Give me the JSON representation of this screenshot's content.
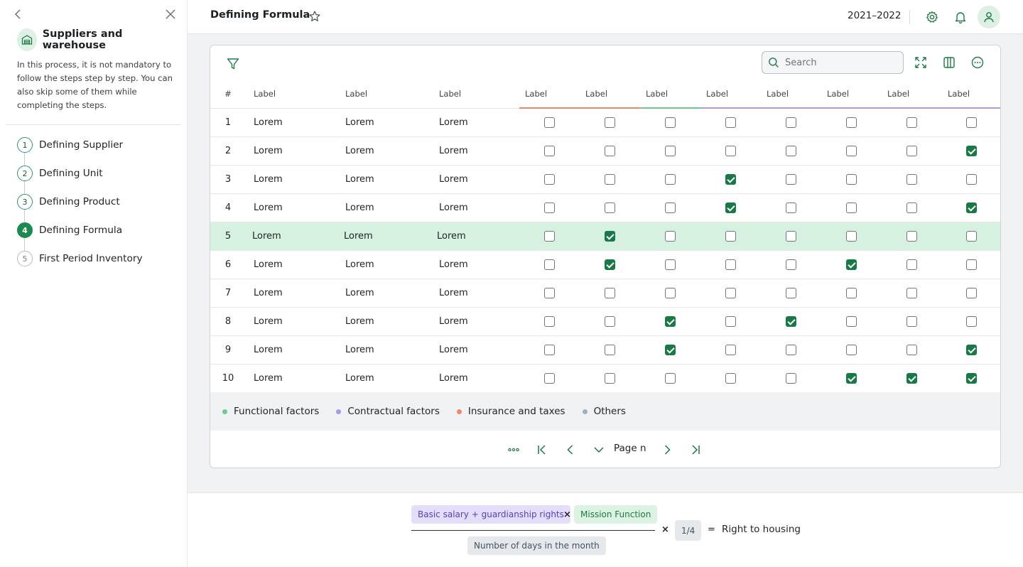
{
  "sidebar": {
    "title": "Suppliers and warehouse",
    "description": "In this process, it is not mandatory to follow the steps step by step. You can also skip some of them while completing the steps.",
    "steps": [
      {
        "num": "1",
        "label": "Defining Supplier",
        "state": "done"
      },
      {
        "num": "2",
        "label": "Defining Unit",
        "state": "done"
      },
      {
        "num": "3",
        "label": "Defining Product",
        "state": "done"
      },
      {
        "num": "4",
        "label": "Defining Formula",
        "state": "active"
      },
      {
        "num": "5",
        "label": "First Period Inventory",
        "state": "pending"
      }
    ]
  },
  "header": {
    "title": "Defining Formula",
    "year": "2021–2022"
  },
  "toolbar": {
    "search_placeholder": "Search"
  },
  "table": {
    "columns": [
      "#",
      "Label",
      "Label",
      "Label",
      "Label",
      "Label",
      "Label",
      "Label",
      "Label",
      "Label",
      "Label",
      "Label"
    ],
    "rows": [
      {
        "num": "1",
        "a": "Lorem",
        "b": "Lorem",
        "c": "Lorem",
        "checks": [
          0,
          0,
          0,
          0,
          0,
          0,
          0,
          0
        ]
      },
      {
        "num": "2",
        "a": "Lorem",
        "b": "Lorem",
        "c": "Lorem",
        "checks": [
          0,
          0,
          0,
          0,
          0,
          0,
          0,
          1
        ]
      },
      {
        "num": "3",
        "a": "Lorem",
        "b": "Lorem",
        "c": "Lorem",
        "checks": [
          0,
          0,
          0,
          1,
          0,
          0,
          0,
          0
        ]
      },
      {
        "num": "4",
        "a": "Lorem",
        "b": "Lorem",
        "c": "Lorem",
        "checks": [
          0,
          0,
          0,
          1,
          0,
          0,
          0,
          1
        ]
      },
      {
        "num": "5",
        "a": "Lorem",
        "b": "Lorem",
        "c": "Lorem",
        "checks": [
          0,
          1,
          0,
          0,
          0,
          0,
          0,
          0
        ],
        "highlighted": true
      },
      {
        "num": "6",
        "a": "Lorem",
        "b": "Lorem",
        "c": "Lorem",
        "checks": [
          0,
          1,
          0,
          0,
          0,
          1,
          0,
          0
        ]
      },
      {
        "num": "7",
        "a": "Lorem",
        "b": "Lorem",
        "c": "Lorem",
        "checks": [
          0,
          0,
          0,
          0,
          0,
          0,
          0,
          0
        ]
      },
      {
        "num": "8",
        "a": "Lorem",
        "b": "Lorem",
        "c": "Lorem",
        "checks": [
          0,
          0,
          1,
          0,
          1,
          0,
          0,
          0
        ]
      },
      {
        "num": "9",
        "a": "Lorem",
        "b": "Lorem",
        "c": "Lorem",
        "checks": [
          0,
          0,
          1,
          0,
          0,
          0,
          0,
          1
        ]
      },
      {
        "num": "10",
        "a": "Lorem",
        "b": "Lorem",
        "c": "Lorem",
        "checks": [
          0,
          0,
          0,
          0,
          0,
          1,
          1,
          1
        ]
      }
    ],
    "header_colors": [
      "#f0876a",
      "#f0876a",
      "#6ccf8e",
      "#a99af0",
      "#a99af0",
      "#a99af0",
      "#a99af0",
      "#a99af0"
    ]
  },
  "legend": [
    {
      "label": "Functional factors",
      "color": "#6ccf8e"
    },
    {
      "label": "Contractual factors",
      "color": "#a99af0"
    },
    {
      "label": "Insurance and taxes",
      "color": "#f0876a"
    },
    {
      "label": "Others",
      "color": "#9fb0bf"
    }
  ],
  "pager": {
    "label": "Page n"
  },
  "formula": {
    "numerator_a": "Basic salary + guardianship rights",
    "times_1": "×",
    "numerator_b": "Mission Function",
    "denominator": "Number of days in the month",
    "times_2": "×",
    "factor": "1/4",
    "equals": "=",
    "result": "Right to housing"
  },
  "colors": {
    "accent": "#177a46",
    "highlight_row": "#d6f1df"
  }
}
